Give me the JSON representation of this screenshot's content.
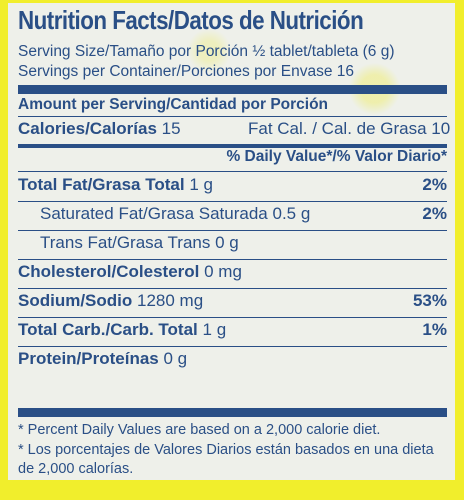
{
  "title": "Nutrition Facts/Datos de Nutrición",
  "serving_size": "Serving Size/Tamaño por Porción ½ tablet/tableta (6 g)",
  "servings_per_container": "Servings per Container/Porciones por Envase 16",
  "amount_per_serving": "Amount per Serving/Cantidad por Porción",
  "calories": {
    "label": "Calories/Calorías",
    "value": "15",
    "fat_cal": "Fat Cal. / Cal. de Grasa 10"
  },
  "daily_value_header": "% Daily Value*/% Valor Diario*",
  "nutrients": [
    {
      "label": "Total Fat/Grasa Total",
      "amount": "1 g",
      "pct": "2%",
      "bold": true,
      "indent": false
    },
    {
      "label": "Saturated Fat/Grasa Saturada",
      "amount": "0.5 g",
      "pct": "2%",
      "bold": false,
      "indent": true
    },
    {
      "label": "Trans Fat/Grasa Trans",
      "amount": "0 g",
      "pct": "",
      "bold": false,
      "indent": true
    },
    {
      "label": "Cholesterol/Colesterol",
      "amount": "0 mg",
      "pct": "",
      "bold": true,
      "indent": false
    },
    {
      "label": "Sodium/Sodio",
      "amount": "1280 mg",
      "pct": "53%",
      "bold": true,
      "indent": false
    },
    {
      "label": "Total Carb./Carb. Total",
      "amount": "1 g",
      "pct": "1%",
      "bold": true,
      "indent": false
    },
    {
      "label": "Protein/Proteínas",
      "amount": "0 g",
      "pct": "",
      "bold": true,
      "indent": false
    }
  ],
  "footnote_en": "* Percent Daily Values are based on a 2,000 calorie diet.",
  "footnote_es": "* Los porcentajes de Valores Diarios están basados en una dieta de 2,000 calorías.",
  "colors": {
    "text": "#2a4f86",
    "background": "#f1ee2c",
    "panel": "#eef0ea"
  }
}
